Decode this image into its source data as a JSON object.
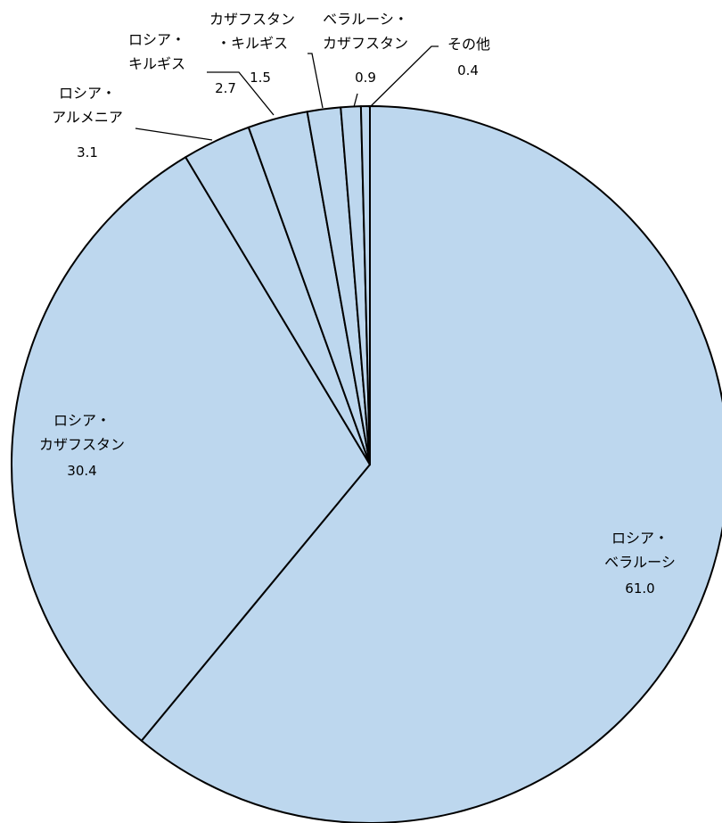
{
  "chart_data": {
    "type": "pie",
    "title": "",
    "start": "top",
    "direction": "clockwise",
    "colors": {
      "fill": "#bdd7ee",
      "stroke": "#000000"
    },
    "slices": [
      {
        "label_lines": [
          "ロシア・",
          "ベラルーシ"
        ],
        "value": 61.0,
        "value_text": "61.0"
      },
      {
        "label_lines": [
          "ロシア・",
          "カザフスタン"
        ],
        "value": 30.4,
        "value_text": "30.4"
      },
      {
        "label_lines": [
          "ロシア・",
          "アルメニア"
        ],
        "value": 3.1,
        "value_text": "3.1"
      },
      {
        "label_lines": [
          "ロシア・",
          "キルギス"
        ],
        "value": 2.7,
        "value_text": "2.7"
      },
      {
        "label_lines": [
          "カザフスタン",
          "・キルギス"
        ],
        "value": 1.5,
        "value_text": "1.5"
      },
      {
        "label_lines": [
          "ベラルーシ・",
          "カザフスタン"
        ],
        "value": 0.9,
        "value_text": "0.9"
      },
      {
        "label_lines": [
          "その他"
        ],
        "value": 0.4,
        "value_text": "0.4"
      }
    ]
  }
}
